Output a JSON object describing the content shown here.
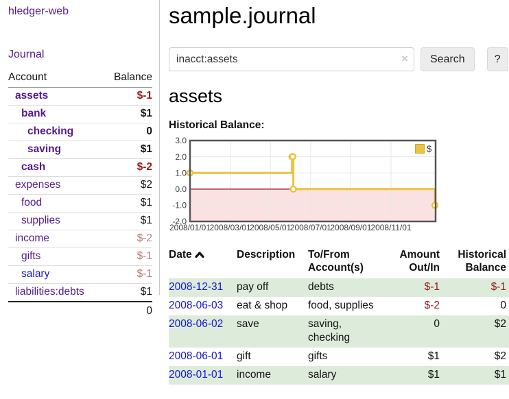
{
  "sidebar": {
    "brand": "hledger-web",
    "journal_link": "Journal",
    "accounts": {
      "header_account": "Account",
      "header_balance": "Balance",
      "rows": [
        {
          "name": "assets",
          "balance": "$-1"
        },
        {
          "name": "bank",
          "balance": "$1"
        },
        {
          "name": "checking",
          "balance": "0"
        },
        {
          "name": "saving",
          "balance": "$1"
        },
        {
          "name": "cash",
          "balance": "$-2"
        },
        {
          "name": "expenses",
          "balance": "$2"
        },
        {
          "name": "food",
          "balance": "$1"
        },
        {
          "name": "supplies",
          "balance": "$1"
        },
        {
          "name": "income",
          "balance": "$-2"
        },
        {
          "name": "gifts",
          "balance": "$-1"
        },
        {
          "name": "salary",
          "balance": "$-1"
        },
        {
          "name": "liabilities:debts",
          "balance": "$1"
        }
      ],
      "total": "0"
    }
  },
  "main": {
    "title": "sample.journal",
    "search": {
      "value": "inacct:assets",
      "clear_label": "×",
      "button_label": "Search",
      "help_label": "?"
    },
    "account_heading": "assets",
    "chart_label": "Historical Balance:",
    "register": {
      "headers": {
        "date": "Date",
        "description": "Description",
        "accounts": "To/From Account(s)",
        "amount": "Amount Out/In",
        "balance": "Historical Balance"
      },
      "rows": [
        {
          "date": "2008-12-31",
          "description": "pay off",
          "accounts": "debts",
          "amount": "$-1",
          "balance": "$-1"
        },
        {
          "date": "2008-06-03",
          "description": "eat & shop",
          "accounts": "food, supplies",
          "amount": "$-2",
          "balance": "0"
        },
        {
          "date": "2008-06-02",
          "description": "save",
          "accounts": "saving, checking",
          "amount": "0",
          "balance": "$2"
        },
        {
          "date": "2008-06-01",
          "description": "gift",
          "accounts": "gifts",
          "amount": "$1",
          "balance": "$2"
        },
        {
          "date": "2008-01-01",
          "description": "income",
          "accounts": "salary",
          "amount": "$1",
          "balance": "$1"
        }
      ]
    }
  },
  "chart_data": {
    "type": "line",
    "step": true,
    "title": "Historical Balance:",
    "series": [
      {
        "name": "$",
        "points": [
          [
            "2008-01-01",
            1
          ],
          [
            "2008-06-01",
            2
          ],
          [
            "2008-06-02",
            2
          ],
          [
            "2008-06-03",
            0
          ],
          [
            "2008-12-31",
            -1
          ]
        ]
      }
    ],
    "ylim": [
      -2,
      3
    ],
    "yticks": [
      "3.0",
      "2.0",
      "1.0",
      "0.0",
      "-1.0",
      "-2.0"
    ],
    "xticks": [
      "2008/01/01",
      "2008/03/01",
      "2008/05/01",
      "2008/07/01",
      "2008/09/01",
      "2008/11/01"
    ],
    "x_range": [
      "2008-01-01",
      "2009-01-01"
    ],
    "legend_position": "top-right",
    "colors": {
      "line": "#edc240",
      "negative_region": "#fbe2e2",
      "zero_line": "#9e0b0b"
    }
  }
}
